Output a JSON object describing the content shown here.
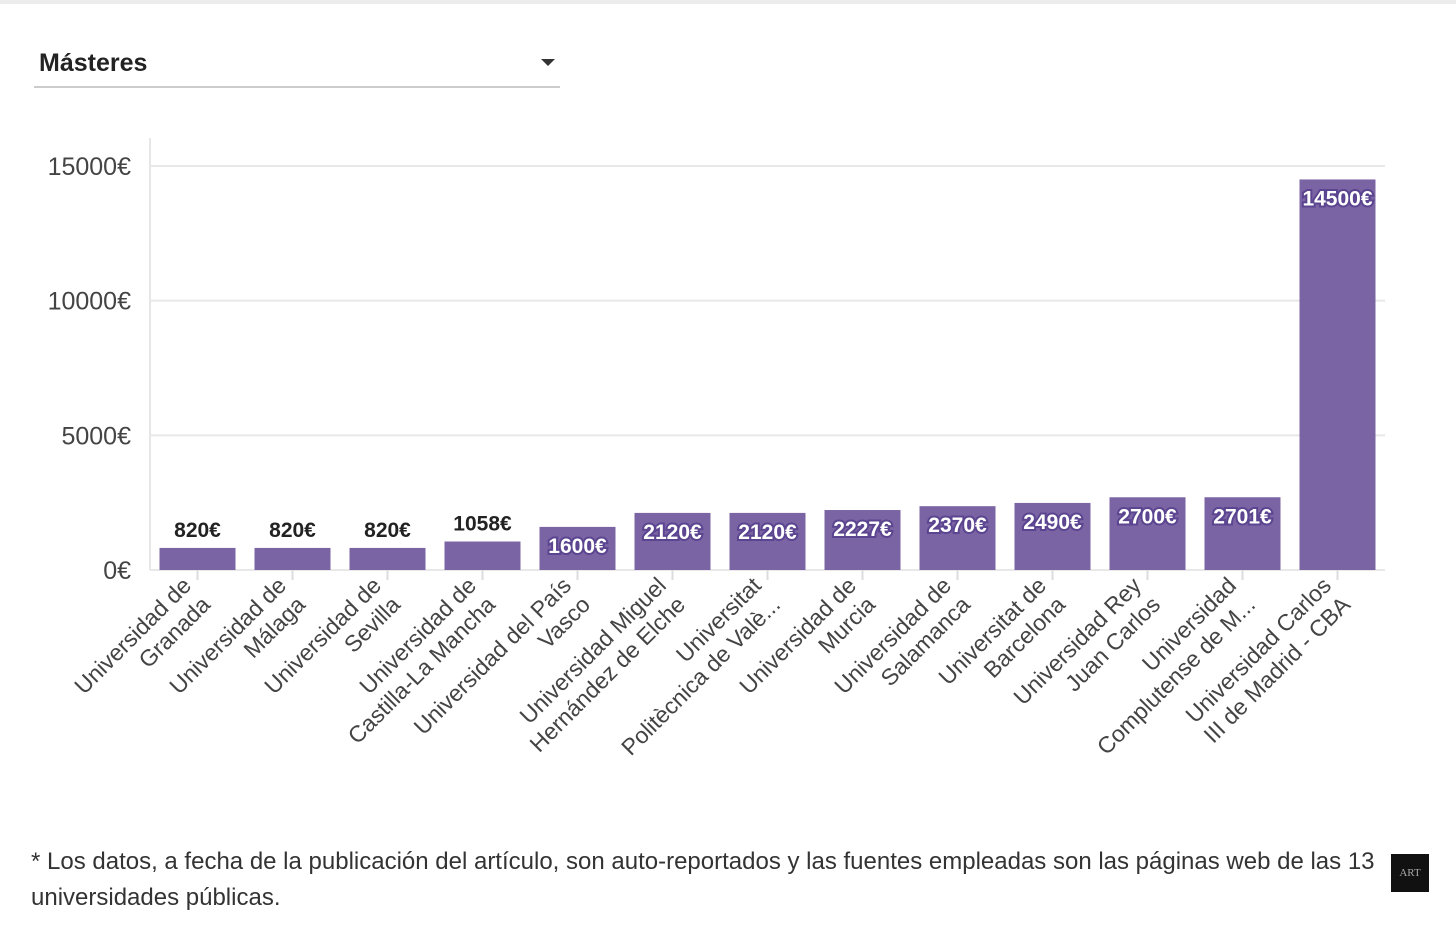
{
  "filter": {
    "selected": "Másteres"
  },
  "chart_data": {
    "type": "bar",
    "title": "",
    "xlabel": "",
    "ylabel": "",
    "ylim": [
      0,
      15000
    ],
    "yticks": [
      0,
      5000,
      10000,
      15000
    ],
    "ytick_labels": [
      "0€",
      "5000€",
      "10000€",
      "15000€"
    ],
    "grid": true,
    "bar_color": "#7b64a3",
    "categories": [
      [
        "Universidad de",
        "Granada"
      ],
      [
        "Universidad de",
        "Málaga"
      ],
      [
        "Universidad de",
        "Sevilla"
      ],
      [
        "Universidad de",
        "Castilla-La Mancha"
      ],
      [
        "Universidad del País",
        "Vasco"
      ],
      [
        "Universidad Miguel",
        "Hernández de Elche"
      ],
      [
        "Universitat",
        "Politècnica de Valè..."
      ],
      [
        "Universidad de",
        "Murcia"
      ],
      [
        "Universidad de",
        "Salamanca"
      ],
      [
        "Universitat de",
        "Barcelona"
      ],
      [
        "Universidad Rey",
        "Juan Carlos"
      ],
      [
        "Universidad",
        "Complutense de M..."
      ],
      [
        "Universidad Carlos",
        "III de Madrid - CBA"
      ]
    ],
    "values": [
      820,
      820,
      820,
      1058,
      1600,
      2120,
      2120,
      2227,
      2370,
      2490,
      2700,
      2701,
      14500
    ],
    "data_labels": [
      "820€",
      "820€",
      "820€",
      "1058€",
      "1600€",
      "2120€",
      "2120€",
      "2227€",
      "2370€",
      "2490€",
      "2700€",
      "2701€",
      "14500€"
    ]
  },
  "footnote": "* Los datos, a fecha de la publicación del artículo, son auto-reportados y las fuentes empleadas son las páginas web de las 13 universidades públicas.",
  "logo_text": "ART"
}
